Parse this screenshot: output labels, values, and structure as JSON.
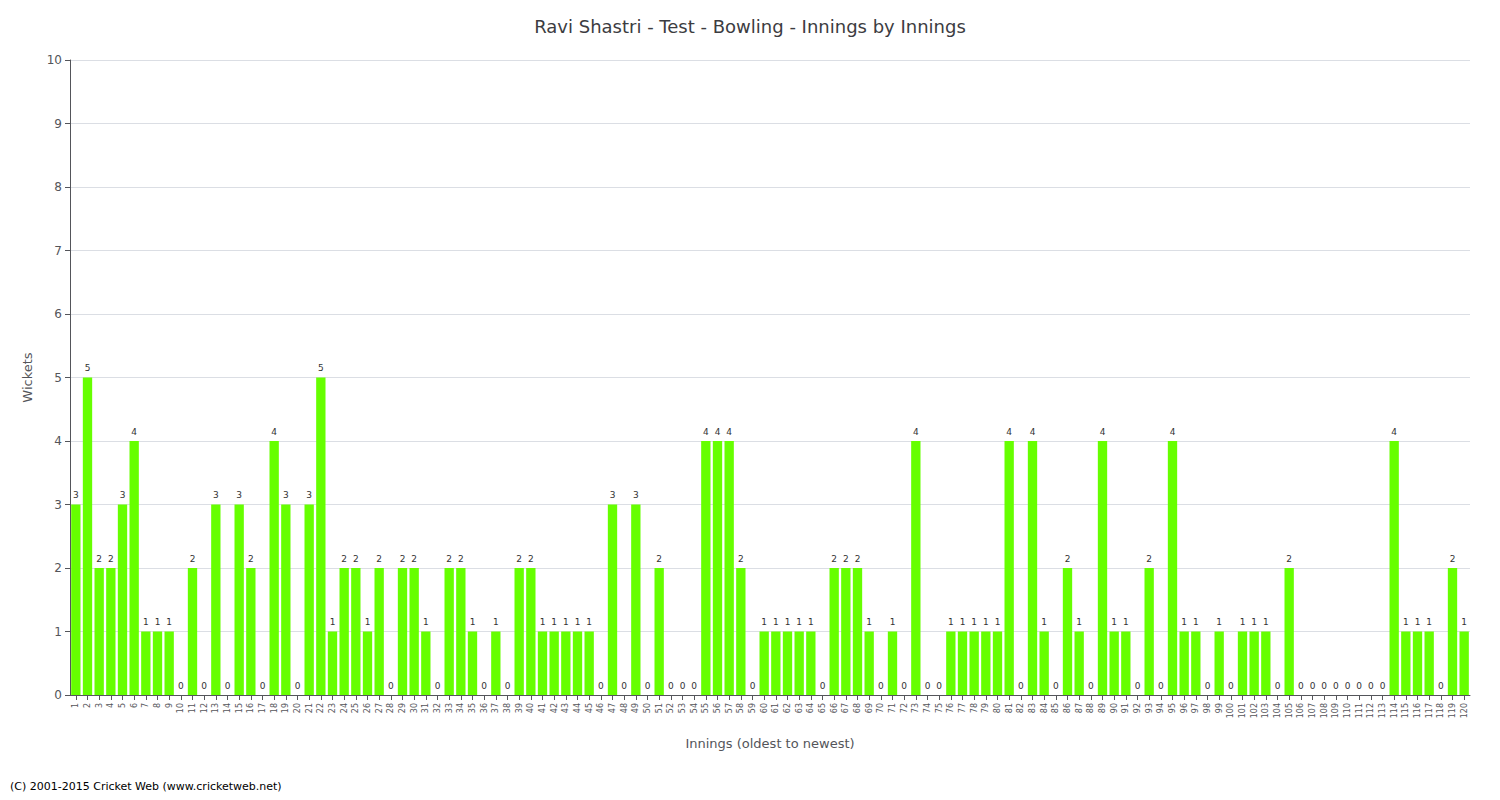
{
  "chart_data": {
    "type": "bar",
    "title": "Ravi Shastri - Test - Bowling - Innings by Innings",
    "xlabel": "Innings (oldest to newest)",
    "ylabel": "Wickets",
    "annotations": [
      "(C) 2001-2015 Cricket Web (www.cricketweb.net)"
    ],
    "categories": [
      "1",
      "2",
      "3",
      "4",
      "5",
      "6",
      "7",
      "8",
      "9",
      "10",
      "11",
      "12",
      "13",
      "14",
      "15",
      "16",
      "17",
      "18",
      "19",
      "20",
      "21",
      "22",
      "23",
      "24",
      "25",
      "26",
      "27",
      "28",
      "29",
      "30",
      "31",
      "32",
      "33",
      "34",
      "35",
      "36",
      "37",
      "38",
      "39",
      "40",
      "41",
      "42",
      "43",
      "44",
      "45",
      "46",
      "47",
      "48",
      "49",
      "50",
      "51",
      "52",
      "53",
      "54",
      "55",
      "56",
      "57",
      "58",
      "59",
      "60",
      "61",
      "62",
      "63",
      "64",
      "65",
      "66",
      "67",
      "68",
      "69",
      "70",
      "71",
      "72",
      "73",
      "74",
      "75",
      "76",
      "77",
      "78",
      "79",
      "80",
      "81",
      "82",
      "83",
      "84",
      "85",
      "86",
      "87",
      "88",
      "89",
      "90",
      "91",
      "92",
      "93",
      "94",
      "95",
      "96",
      "97",
      "98",
      "99",
      "100",
      "101",
      "102",
      "103",
      "104",
      "105",
      "106",
      "107",
      "108",
      "109",
      "110",
      "111",
      "112",
      "113",
      "114",
      "115",
      "116",
      "117",
      "118",
      "119",
      "120"
    ],
    "values": [
      3,
      5,
      2,
      2,
      3,
      4,
      1,
      1,
      1,
      0,
      2,
      0,
      3,
      0,
      3,
      2,
      0,
      4,
      3,
      0,
      3,
      5,
      1,
      2,
      2,
      1,
      2,
      0,
      2,
      2,
      1,
      0,
      2,
      2,
      1,
      0,
      1,
      0,
      2,
      2,
      1,
      1,
      1,
      1,
      1,
      0,
      3,
      0,
      3,
      0,
      2,
      0,
      0,
      0,
      4,
      4,
      4,
      2,
      0,
      1,
      1,
      1,
      1,
      1,
      0,
      2,
      2,
      2,
      1,
      0,
      1,
      0,
      4,
      0,
      0,
      1,
      1,
      1,
      1,
      1,
      4,
      0,
      4,
      1,
      0,
      2,
      1,
      0,
      4,
      1,
      1,
      0,
      2,
      0,
      4,
      1,
      1,
      0,
      1,
      0,
      1,
      1,
      1,
      0,
      2,
      0,
      0,
      0,
      0,
      0,
      0,
      0,
      0,
      4,
      1,
      1,
      1,
      0,
      2,
      1
    ],
    "color": "#66ff00",
    "ylim": [
      0,
      10
    ],
    "yticks": [
      0,
      1,
      2,
      3,
      4,
      5,
      6,
      7,
      8,
      9,
      10
    ],
    "grid": true,
    "data_labels": true
  }
}
